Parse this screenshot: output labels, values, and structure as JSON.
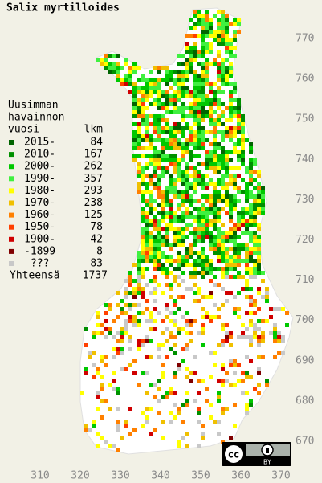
{
  "title": "Salix myrtilloides",
  "legend": {
    "heading": [
      "Uusimman",
      "havainnon"
    ],
    "column_year": "vuosi",
    "column_count": "lkm",
    "items": [
      {
        "label": "2015-",
        "count": 84,
        "color": "#006400"
      },
      {
        "label": "2010-",
        "count": 167,
        "color": "#009000"
      },
      {
        "label": "2000-",
        "count": 262,
        "color": "#00c800"
      },
      {
        "label": "1990-",
        "count": 357,
        "color": "#40f040"
      },
      {
        "label": "1980-",
        "count": 293,
        "color": "#ffff00"
      },
      {
        "label": "1970-",
        "count": 238,
        "color": "#f0c000"
      },
      {
        "label": "1960-",
        "count": 125,
        "color": "#ff8000"
      },
      {
        "label": "1950-",
        "count": 78,
        "color": "#ff4000"
      },
      {
        "label": "1900-",
        "count": 42,
        "color": "#d00000"
      },
      {
        "label": "-1899",
        "count": 8,
        "color": "#800000"
      },
      {
        "label": "???",
        "count": 83,
        "color": "#c8c8c8"
      }
    ],
    "total_label": "Yhteensä",
    "total": 1737
  },
  "grid_y_labels": [
    770,
    760,
    750,
    740,
    730,
    720,
    710,
    700,
    690,
    680,
    670
  ],
  "grid_x_labels": [
    310,
    320,
    330,
    340,
    350,
    360,
    370
  ],
  "license": {
    "logo": "cc",
    "label": "BY"
  }
}
